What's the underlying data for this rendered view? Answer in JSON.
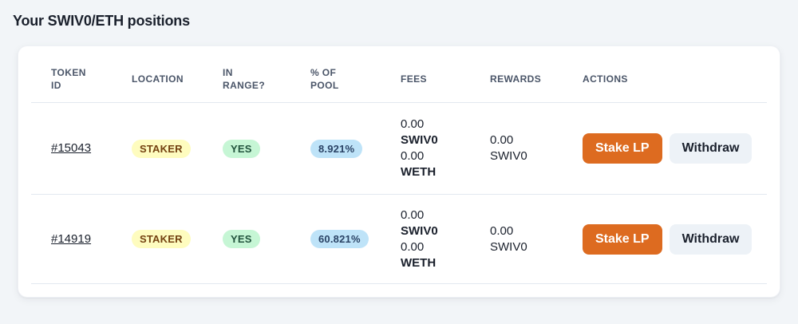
{
  "page": {
    "title": "Your SWIV0/ETH positions"
  },
  "colors": {
    "stake_button_bg": "#dd6b20",
    "withdraw_button_bg": "#edf2f7",
    "location_badge_bg": "#fefcbf",
    "location_badge_text": "#744210",
    "in_range_badge_bg": "#c6f6d5",
    "in_range_badge_text": "#22543d",
    "pool_badge_bg": "#bee3f8",
    "pool_badge_text": "#2a4365",
    "card_bg": "#ffffff",
    "page_bg": "#f2f5f8",
    "divider": "#e2e8f0"
  },
  "table": {
    "headers": [
      {
        "lines": [
          "TOKEN",
          "ID"
        ]
      },
      {
        "lines": [
          "LOCATION"
        ]
      },
      {
        "lines": [
          "IN",
          "RANGE?"
        ]
      },
      {
        "lines": [
          "% OF",
          "POOL"
        ]
      },
      {
        "lines": [
          "FEES"
        ]
      },
      {
        "lines": [
          "REWARDS"
        ]
      },
      {
        "lines": [
          "ACTIONS"
        ]
      }
    ],
    "actions": {
      "stake_label": "Stake LP",
      "withdraw_label": "Withdraw"
    },
    "rows": [
      {
        "token_id": "#15043",
        "location": "STAKER",
        "in_range": "YES",
        "pool_share": "8.921%",
        "fees": {
          "amount0": "0.00",
          "token0": "SWIV0",
          "amount1": "0.00",
          "token1": "WETH"
        },
        "rewards": {
          "amount": "0.00",
          "token": "SWIV0"
        }
      },
      {
        "token_id": "#14919",
        "location": "STAKER",
        "in_range": "YES",
        "pool_share": "60.821%",
        "fees": {
          "amount0": "0.00",
          "token0": "SWIV0",
          "amount1": "0.00",
          "token1": "WETH"
        },
        "rewards": {
          "amount": "0.00",
          "token": "SWIV0"
        }
      }
    ]
  }
}
